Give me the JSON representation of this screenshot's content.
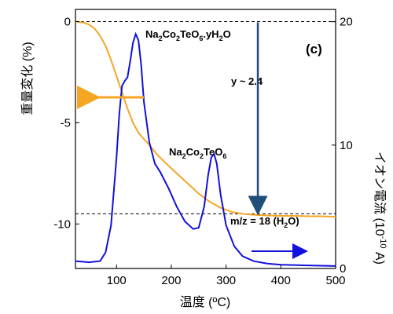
{
  "chart_data": {
    "type": "line",
    "panel_label": "(c)",
    "xlabel": "温度 (ºC)",
    "xlim": [
      25,
      500
    ],
    "x_ticks": [
      100,
      200,
      300,
      400,
      500
    ],
    "y_left": {
      "label": "重量変化 (%)",
      "ylim": [
        -12.2,
        0.6
      ],
      "ticks": [
        0,
        -5,
        -10
      ]
    },
    "y_right": {
      "label_main": "イオン電流 (10",
      "label_exp": "-10",
      "label_end": " A)",
      "ylim": [
        0,
        21
      ],
      "ticks": [
        0,
        10,
        20
      ]
    },
    "series": [
      {
        "axis": "left",
        "color": "#f5a623",
        "x": [
          25,
          40,
          50,
          60,
          70,
          80,
          90,
          100,
          110,
          120,
          130,
          140,
          150,
          160,
          175,
          190,
          210,
          230,
          250,
          270,
          290,
          310,
          330,
          350,
          375,
          400,
          425,
          450,
          475,
          500
        ],
        "y": [
          0,
          -0.05,
          -0.15,
          -0.35,
          -0.7,
          -1.2,
          -1.9,
          -2.7,
          -3.5,
          -4.3,
          -5.0,
          -5.5,
          -5.8,
          -6.1,
          -6.6,
          -7.0,
          -7.5,
          -8.0,
          -8.5,
          -8.9,
          -9.2,
          -9.4,
          -9.5,
          -9.55,
          -9.58,
          -9.6,
          -9.6,
          -9.62,
          -9.62,
          -9.65
        ]
      },
      {
        "axis": "right",
        "color": "#1111dd",
        "x": [
          25,
          50,
          70,
          80,
          90,
          100,
          105,
          110,
          115,
          120,
          125,
          130,
          135,
          140,
          145,
          150,
          160,
          170,
          180,
          195,
          210,
          225,
          240,
          250,
          260,
          267,
          273,
          278,
          283,
          290,
          300,
          315,
          330,
          350,
          375,
          400,
          450,
          500
        ],
        "y": [
          0.6,
          0.5,
          0.6,
          1.3,
          3.5,
          9.0,
          12.5,
          14.8,
          15.2,
          15.5,
          16.8,
          18.3,
          19.0,
          18.5,
          16.5,
          13.5,
          10.2,
          8.5,
          7.8,
          6.5,
          5.0,
          3.8,
          3.2,
          3.3,
          5.0,
          7.5,
          9.0,
          9.3,
          8.5,
          6.0,
          3.5,
          1.8,
          1.0,
          0.6,
          0.4,
          0.3,
          0.25,
          0.2
        ]
      }
    ],
    "reference_lines": [
      {
        "axis": "left",
        "y": 0,
        "style": "dashed"
      },
      {
        "axis": "left",
        "y": -9.5,
        "style": "dashed"
      }
    ],
    "annotations": {
      "top_compound": {
        "pre": "Na",
        "s1": "2",
        "mid1": "Co",
        "s2": "2",
        "mid2": "TeO",
        "s3": "6",
        "post": ".yH",
        "s4": "2",
        "end": "O"
      },
      "bottom_compound": {
        "pre": "Na",
        "s1": "2",
        "mid1": "Co",
        "s2": "2",
        "mid2": "TeO",
        "s3": "6"
      },
      "water_loss": "y ~ 2.4",
      "mz_pre": "m/z = 18 (H",
      "mz_sub": "2",
      "mz_post": "O)"
    },
    "arrows": [
      {
        "color": "#f5a623",
        "direction": "left",
        "axis": "left"
      },
      {
        "color": "#1111dd",
        "direction": "right",
        "axis": "right"
      },
      {
        "color": "#1f4e79",
        "direction": "down",
        "from_y": 0,
        "to_y": -9.5,
        "at_x": 358
      }
    ]
  }
}
